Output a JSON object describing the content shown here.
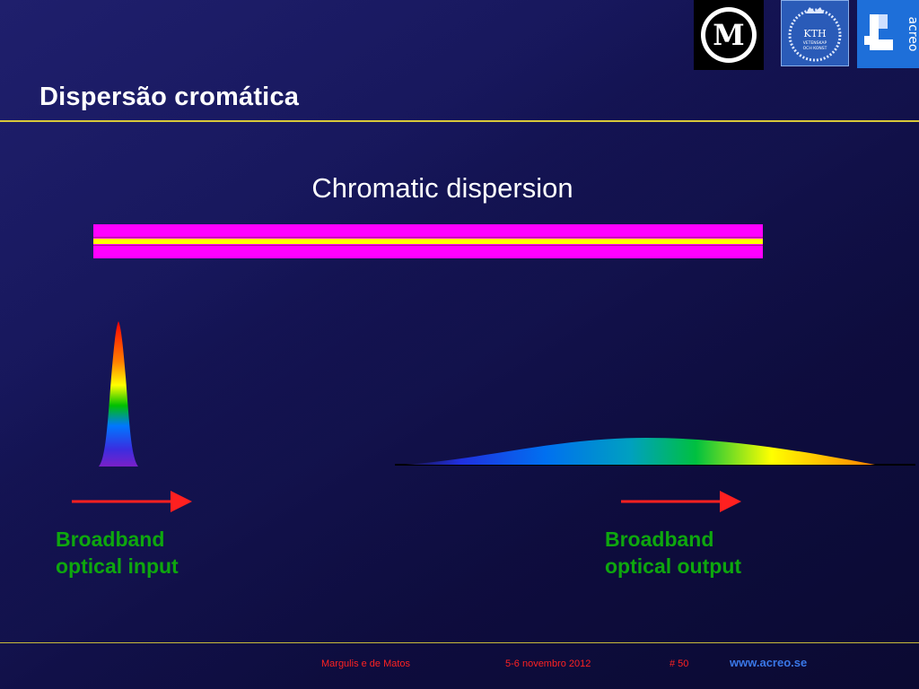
{
  "slide": {
    "title": "Dispersão cromática",
    "subtitle": "Chromatic dispersion"
  },
  "diagram": {
    "input_label_line1": "Broadband",
    "input_label_line2": "optical input",
    "output_label_line1": "Broadband",
    "output_label_line2": "optical output"
  },
  "logos": {
    "m_letter": "M",
    "kth_text": "KTH",
    "kth_sub1": "VETENSKAP",
    "kth_sub2": "OCH KONST",
    "acreo_text": "acreo"
  },
  "footer": {
    "authors": "Margulis e de Matos",
    "date": "5-6 novembro 2012",
    "page": "# 50",
    "url": "www.acreo.se"
  },
  "colors": {
    "fiber_cladding": "#ff00ff",
    "fiber_core": "#ffff00",
    "label_green": "#0ea70e",
    "footer_red": "#ff2222",
    "rule_yellow": "#d8c83a"
  }
}
